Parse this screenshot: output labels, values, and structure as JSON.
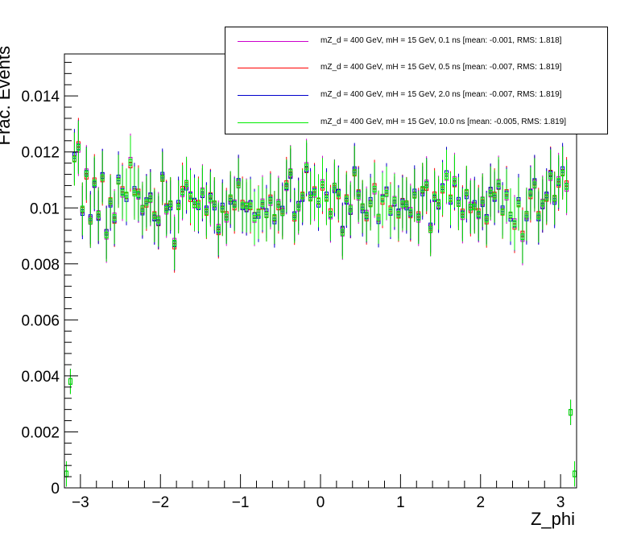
{
  "chart_data": {
    "type": "histogram",
    "title": "",
    "xlabel": "Z_phi",
    "ylabel": "Frac. Events",
    "xlim": [
      -3.2,
      3.2
    ],
    "ylim": [
      0,
      0.0155
    ],
    "x_ticks": [
      -3,
      -2,
      -1,
      0,
      1,
      2,
      3
    ],
    "x_tick_labels": [
      "−3",
      "−2",
      "−1",
      "0",
      "1",
      "2",
      "3"
    ],
    "y_ticks": [
      0,
      0.002,
      0.004,
      0.006,
      0.008,
      0.01,
      0.012,
      0.014
    ],
    "y_tick_labels": [
      "0",
      "0.002",
      "0.004",
      "0.006",
      "0.008",
      "0.01",
      "0.012",
      "0.014"
    ],
    "bin_edges_range": [
      -3.2,
      3.2
    ],
    "n_bins": 128,
    "legend_position": "top-right",
    "series": [
      {
        "name": "mZ_d = 400 GeV, mH = 15 GeV, 0.1 ns [mean: -0.001, RMS: 1.818]",
        "color": "#cc00cc"
      },
      {
        "name": "mZ_d = 400 GeV, mH = 15 GeV, 0.5 ns [mean: -0.007, RMS: 1.819]",
        "color": "#ff0000"
      },
      {
        "name": "mZ_d = 400 GeV, mH = 15 GeV, 2.0 ns [mean: -0.007, RMS: 1.819]",
        "color": "#0000cc"
      },
      {
        "name": "mZ_d = 400 GeV, mH = 15 GeV, 10.0 ns [mean: -0.005, RMS: 1.819]",
        "color": "#00ee00"
      }
    ],
    "values": [
      0.0005,
      0.0038,
      0.0118,
      0.0122,
      0.0099,
      0.0112,
      0.0096,
      0.0109,
      0.0097,
      0.0111,
      0.0091,
      0.0102,
      0.0096,
      0.011,
      0.0106,
      0.0104,
      0.0116,
      0.0106,
      0.0105,
      0.0099,
      0.0102,
      0.0104,
      0.0097,
      0.0095,
      0.0111,
      0.01,
      0.0101,
      0.0087,
      0.0101,
      0.0106,
      0.0108,
      0.0104,
      0.0102,
      0.0101,
      0.0105,
      0.0099,
      0.0104,
      0.0101,
      0.0092,
      0.01,
      0.0097,
      0.0103,
      0.0101,
      0.0109,
      0.0101,
      0.01,
      0.0101,
      0.0097,
      0.0098,
      0.0101,
      0.0098,
      0.0103,
      0.0096,
      0.0101,
      0.0099,
      0.0108,
      0.0112,
      0.0097,
      0.0101,
      0.0104,
      0.0114,
      0.0104,
      0.0106,
      0.0102,
      0.0108,
      0.0104,
      0.0098,
      0.0107,
      0.0105,
      0.0092,
      0.0103,
      0.0099,
      0.0113,
      0.0105,
      0.01,
      0.0097,
      0.0102,
      0.0107,
      0.0096,
      0.0103,
      0.0106,
      0.0099,
      0.0102,
      0.0098,
      0.0102,
      0.0101,
      0.0098,
      0.0105,
      0.0097,
      0.0106,
      0.0108,
      0.0093,
      0.0104,
      0.0101,
      0.0107,
      0.0112,
      0.0103,
      0.0109,
      0.0102,
      0.0098,
      0.0105,
      0.01,
      0.0101,
      0.0098,
      0.0102,
      0.0096,
      0.0106,
      0.0104,
      0.0108,
      0.0099,
      0.0105,
      0.0097,
      0.0094,
      0.0102,
      0.009,
      0.0097,
      0.0105,
      0.0109,
      0.0097,
      0.0101,
      0.0104,
      0.0112,
      0.0103,
      0.0109,
      0.0113,
      0.0108,
      0.0027,
      0.0005
    ]
  },
  "legend": [
    {
      "label": "mZ_d = 400 GeV, mH = 15 GeV, 0.1 ns [mean: -0.001, RMS: 1.818]",
      "color": "#cc00cc"
    },
    {
      "label": "mZ_d = 400 GeV, mH = 15 GeV, 0.5 ns [mean: -0.007, RMS: 1.819]",
      "color": "#ff0000"
    },
    {
      "label": "mZ_d = 400 GeV, mH = 15 GeV, 2.0 ns [mean: -0.007, RMS: 1.819]",
      "color": "#0000cc"
    },
    {
      "label": "mZ_d = 400 GeV, mH = 15 GeV, 10.0 ns [mean: -0.005, RMS: 1.819]",
      "color": "#00ee00"
    }
  ]
}
